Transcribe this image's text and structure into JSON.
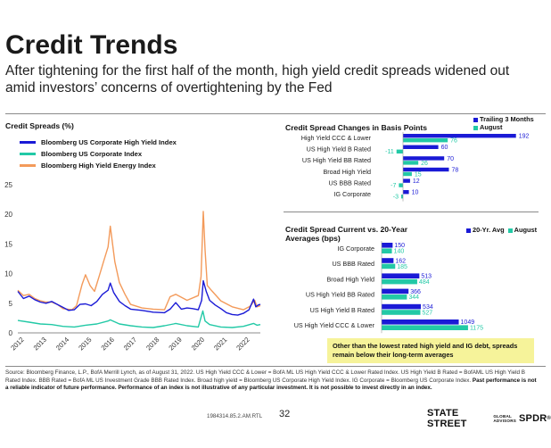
{
  "page": {
    "title": "Credit Trends",
    "subtitle": "After tightening for the first half of the month, high yield credit spreads widened out amid investors’ concerns of overtightening by the Fed",
    "callout": "Other than the lowest rated high yield and IG debt, spreads remain below their long-term averages",
    "footnote_plain": "Source: Bloomberg Finance, L.P., BofA Merrill Lynch, as of August 31, 2022. US High Yield CCC & Lower = BofA ML US High Yield CCC & Lower Rated Index. US High Yield B Rated = BofAML US High Yield B Rated Index. BBB Rated = BofA ML US Investment Grade BBB Rated Index. Broad high yield = Bloomberg US Corporate High Yield Index. IG Corporate = Bloomberg US Corporate Index. ",
    "footnote_bold": "Past performance is not a reliable indicator of future performance. Performance of an index is not illustrative of any particular investment. It is not possible to invest directly in an index.",
    "footer_code": "1984314.85.2.AM.RTL",
    "page_number": "32",
    "brand_main": "STATE STREET",
    "brand_small_1": "GLOBAL",
    "brand_small_2": "ADVISORS",
    "brand_spdr": "SPDR",
    "brand_reg": "®"
  },
  "chart_data": [
    {
      "type": "line",
      "title": "Credit Spreads (%)",
      "x_ticks": [
        "2012",
        "2013",
        "2014",
        "2015",
        "2016",
        "2017",
        "2018",
        "2019",
        "2020",
        "2021",
        "2022"
      ],
      "y_ticks": [
        "0",
        "5",
        "10",
        "15",
        "20",
        "25"
      ],
      "ylim": [
        0,
        25
      ],
      "xlim": [
        2012.0,
        2022.75
      ],
      "grid": false,
      "legend_position": "top-left",
      "colors": {
        "hy": "#1a1ad6",
        "ig": "#22c9a6",
        "energy": "#f39a5a"
      },
      "series": [
        {
          "name": "Bloomberg US Corporate High Yield Index",
          "color": "#1a1ad6",
          "x": [
            2012.0,
            2012.25,
            2012.5,
            2012.75,
            2013.0,
            2013.25,
            2013.5,
            2013.75,
            2014.0,
            2014.25,
            2014.5,
            2014.75,
            2015.0,
            2015.25,
            2015.5,
            2015.75,
            2016.0,
            2016.1,
            2016.25,
            2016.5,
            2016.75,
            2017.0,
            2017.5,
            2018.0,
            2018.5,
            2018.75,
            2019.0,
            2019.25,
            2019.5,
            2019.75,
            2020.0,
            2020.15,
            2020.22,
            2020.35,
            2020.5,
            2020.75,
            2021.0,
            2021.25,
            2021.5,
            2021.75,
            2022.0,
            2022.25,
            2022.45,
            2022.55,
            2022.65,
            2022.75
          ],
          "values": [
            7.0,
            5.8,
            6.2,
            5.6,
            5.2,
            5.0,
            5.3,
            4.8,
            4.3,
            3.8,
            3.9,
            4.8,
            4.9,
            4.6,
            5.3,
            6.5,
            7.2,
            8.4,
            6.8,
            5.3,
            4.6,
            4.0,
            3.8,
            3.5,
            3.4,
            4.0,
            5.1,
            4.0,
            4.2,
            4.1,
            3.9,
            5.5,
            8.8,
            7.0,
            5.5,
            4.7,
            4.1,
            3.4,
            3.1,
            3.0,
            3.3,
            3.9,
            5.7,
            4.4,
            4.7,
            4.8
          ]
        },
        {
          "name": "Bloomberg US Corporate Index",
          "color": "#22c9a6",
          "x": [
            2012.0,
            2012.5,
            2013.0,
            2013.5,
            2014.0,
            2014.5,
            2015.0,
            2015.5,
            2016.0,
            2016.1,
            2016.5,
            2017.0,
            2017.5,
            2018.0,
            2018.5,
            2018.9,
            2019.0,
            2019.5,
            2020.0,
            2020.2,
            2020.3,
            2020.5,
            2021.0,
            2021.5,
            2022.0,
            2022.45,
            2022.6,
            2022.75
          ],
          "values": [
            2.1,
            1.8,
            1.5,
            1.4,
            1.1,
            1.0,
            1.3,
            1.5,
            2.0,
            2.2,
            1.5,
            1.2,
            1.0,
            0.9,
            1.2,
            1.5,
            1.6,
            1.2,
            1.0,
            3.7,
            2.0,
            1.4,
            1.0,
            0.9,
            1.1,
            1.6,
            1.3,
            1.4
          ]
        },
        {
          "name": "Bloomberg High Yield Energy Index",
          "color": "#f39a5a",
          "x": [
            2012.0,
            2012.25,
            2012.5,
            2012.75,
            2013.0,
            2013.25,
            2013.5,
            2013.75,
            2014.0,
            2014.4,
            2014.6,
            2014.85,
            2015.0,
            2015.2,
            2015.4,
            2015.6,
            2015.8,
            2016.0,
            2016.1,
            2016.3,
            2016.5,
            2016.75,
            2017.0,
            2017.5,
            2018.0,
            2018.5,
            2018.75,
            2019.0,
            2019.5,
            2020.0,
            2020.12,
            2020.22,
            2020.3,
            2020.4,
            2020.6,
            2021.0,
            2021.5,
            2022.0,
            2022.3,
            2022.5,
            2022.6,
            2022.75
          ],
          "values": [
            7.2,
            6.3,
            6.5,
            5.8,
            5.4,
            5.2,
            5.2,
            4.8,
            4.1,
            3.9,
            4.6,
            8.2,
            9.8,
            8.0,
            7.0,
            9.5,
            12.0,
            14.5,
            18.0,
            12.0,
            8.5,
            6.5,
            4.8,
            4.2,
            4.0,
            3.9,
            6.1,
            6.5,
            5.5,
            6.3,
            9.5,
            20.5,
            14.0,
            8.0,
            7.1,
            5.4,
            4.4,
            3.9,
            4.5,
            5.5,
            4.4,
            4.6
          ]
        }
      ]
    },
    {
      "type": "bar",
      "title": "Credit Spread Changes in Basis Points",
      "categories": [
        "High Yield CCC & Lower",
        "US High Yield B Rated",
        "US High Yield BB Rated",
        "Broad High Yield",
        "US BBB Rated",
        "IG Corporate"
      ],
      "series": [
        {
          "name": "Trailing 3 Months",
          "color": "#1a1ad6",
          "values": [
            192,
            60,
            70,
            78,
            12,
            10
          ]
        },
        {
          "name": "August",
          "color": "#22c9a6",
          "values": [
            76,
            -11,
            26,
            15,
            -7,
            -3
          ]
        }
      ],
      "legend_position": "top-right"
    },
    {
      "type": "bar",
      "title": "Credit Spread Current vs. 20-Year Averages (bps)",
      "categories": [
        "IG Corporate",
        "US BBB Rated",
        "Broad High Yield",
        "US High Yield BB Rated",
        "US High Yield B Rated",
        "US High Yield CCC & Lower"
      ],
      "series": [
        {
          "name": "20-Yr. Avg",
          "color": "#1a1ad6",
          "values": [
            150,
            162,
            513,
            366,
            534,
            1049
          ]
        },
        {
          "name": "August",
          "color": "#22c9a6",
          "values": [
            140,
            185,
            484,
            344,
            527,
            1175
          ]
        }
      ],
      "legend_position": "top-right"
    }
  ]
}
